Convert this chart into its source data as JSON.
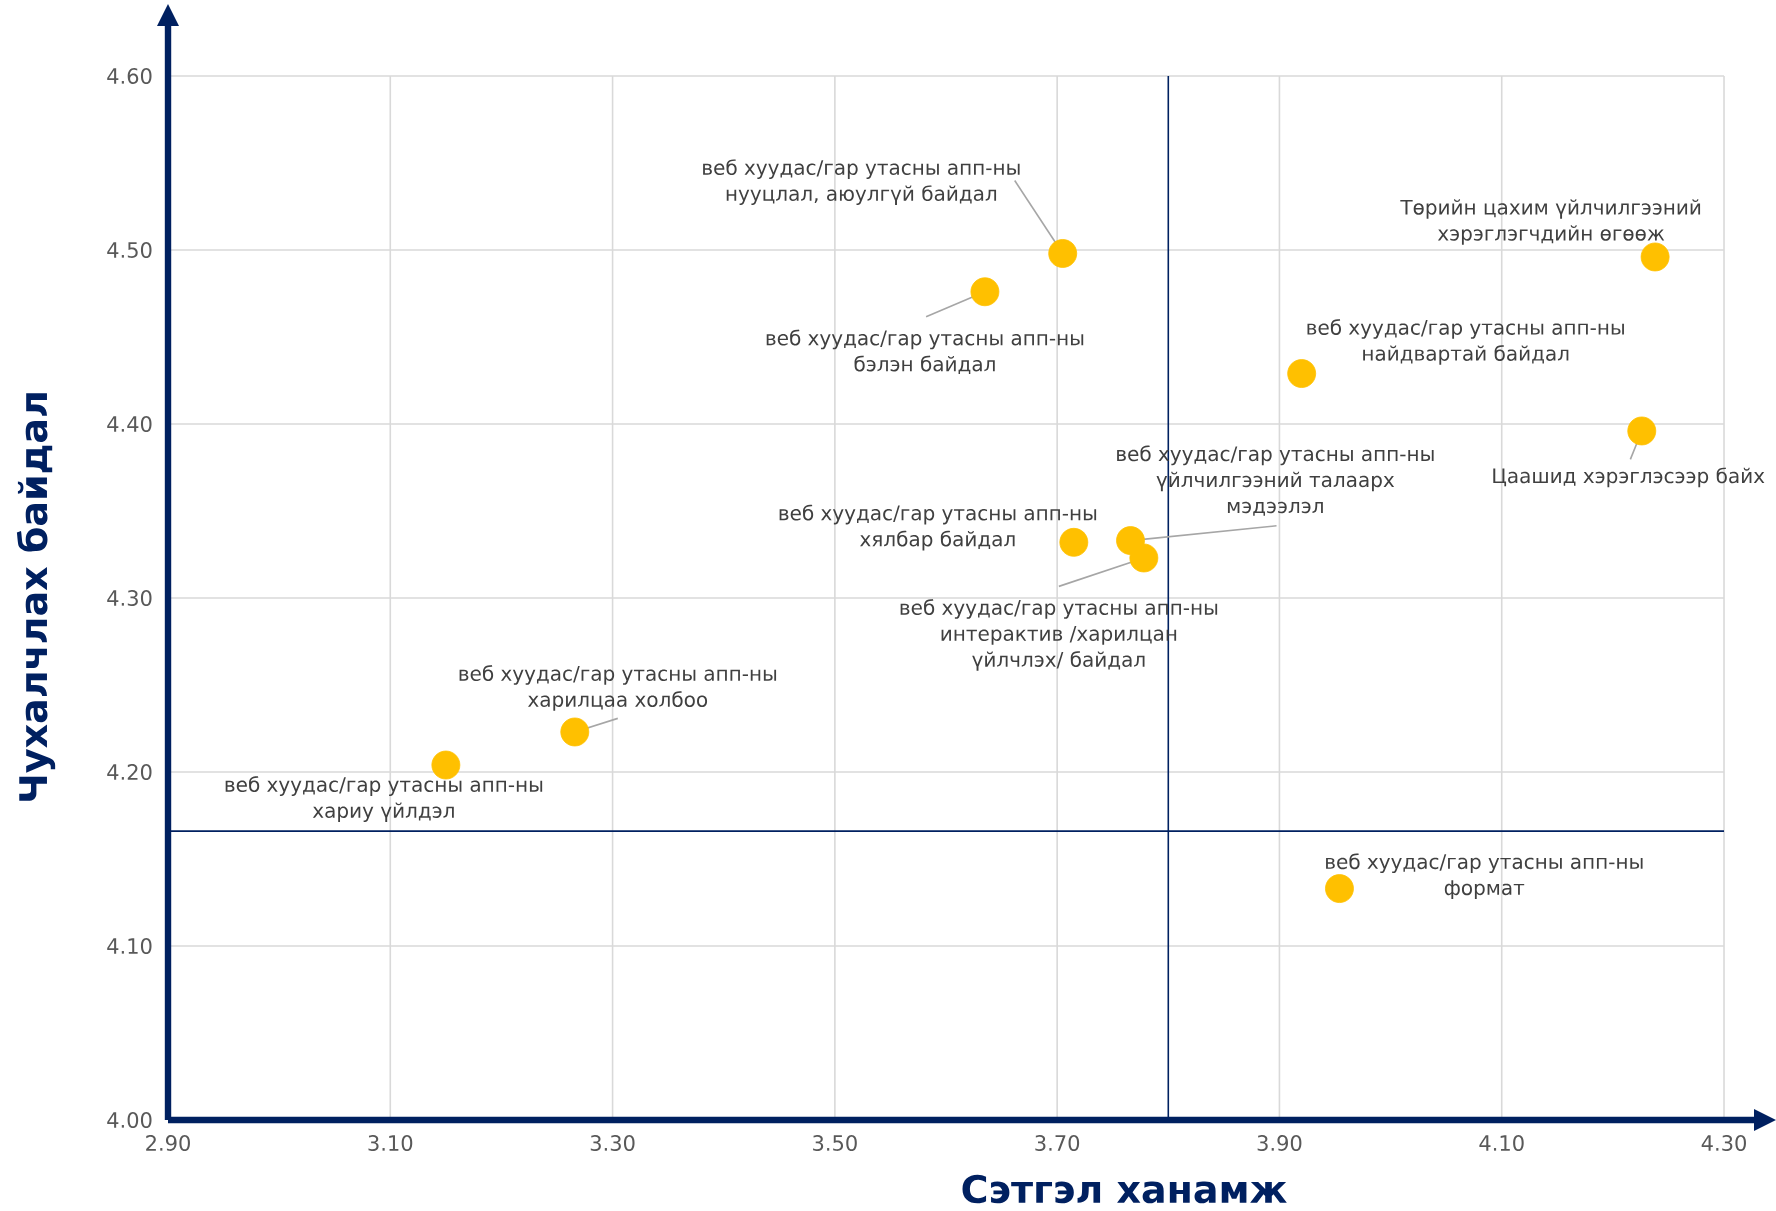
{
  "chart_data": {
    "type": "scatter",
    "xlabel": "Сэтгэл ханамж",
    "ylabel": "Чухалчлах байдал",
    "x": [
      3.15,
      3.266,
      3.635,
      3.705,
      3.715,
      3.766,
      3.778,
      3.92,
      3.954,
      4.226,
      4.238
    ],
    "values": [
      4.204,
      4.223,
      4.476,
      4.498,
      4.332,
      4.333,
      4.323,
      4.429,
      4.133,
      4.396,
      4.496
    ],
    "color": "#ffc000",
    "marker": "circle",
    "grid": true,
    "xlim": [
      2.9,
      4.3
    ],
    "ylim": [
      4.0,
      4.6
    ],
    "xticks": [
      {
        "value": 2.9,
        "label": "2.90"
      },
      {
        "value": 3.1,
        "label": "3.10"
      },
      {
        "value": 3.3,
        "label": "3.30"
      },
      {
        "value": 3.5,
        "label": "3.50"
      },
      {
        "value": 3.7,
        "label": "3.70"
      },
      {
        "value": 3.9,
        "label": "3.90"
      },
      {
        "value": 4.1,
        "label": "4.10"
      },
      {
        "value": 4.3,
        "label": "4.30"
      }
    ],
    "yticks": [
      {
        "value": 4.0,
        "label": "4.00"
      },
      {
        "value": 4.1,
        "label": "4.10"
      },
      {
        "value": 4.2,
        "label": "4.20"
      },
      {
        "value": 4.3,
        "label": "4.30"
      },
      {
        "value": 4.4,
        "label": "4.40"
      },
      {
        "value": 4.5,
        "label": "4.50"
      },
      {
        "value": 4.6,
        "label": "4.60"
      }
    ],
    "ref_lines": [
      {
        "axis": "x",
        "value": 3.8,
        "color": "#002060"
      },
      {
        "axis": "y",
        "value": 4.166,
        "color": "#002060"
      }
    ],
    "annotations": [
      {
        "text": "веб хуудас/гар утасны апп-ны хариу үйлдэл",
        "x": 3.15,
        "y": 4.204
      },
      {
        "text": "веб хуудас/гар утасны апп-ны харилцаа холбоо",
        "x": 3.266,
        "y": 4.223
      },
      {
        "text": "веб хуудас/гар утасны апп-ны бэлэн байдал",
        "x": 3.635,
        "y": 4.476
      },
      {
        "text": "веб хуудас/гар утасны апп-ны нууцлал, аюулгүй байдал",
        "x": 3.705,
        "y": 4.498
      },
      {
        "text": "веб хуудас/гар утасны апп-ны хялбар байдал",
        "x": 3.715,
        "y": 4.332
      },
      {
        "text": "веб хуудас/гар утасны апп-ны үйлчилгээний талаарх мэдээлэл",
        "x": 3.766,
        "y": 4.333
      },
      {
        "text": "веб хуудас/гар утасны апп-ны интерактив /харилцан үйлчлэх/ байдал",
        "x": 3.778,
        "y": 4.323
      },
      {
        "text": "веб хуудас/гар утасны апп-ны найдвартай байдал",
        "x": 3.92,
        "y": 4.429
      },
      {
        "text": "веб хуудас/гар утасны апп-ны формат",
        "x": 3.954,
        "y": 4.133
      },
      {
        "text": "Цаашид хэрэглэсээр байх",
        "x": 4.226,
        "y": 4.396
      },
      {
        "text": "Төрийн цахим үйлчилгээний хэрэглэгчдийн өгөөж",
        "x": 4.238,
        "y": 4.496
      }
    ]
  }
}
